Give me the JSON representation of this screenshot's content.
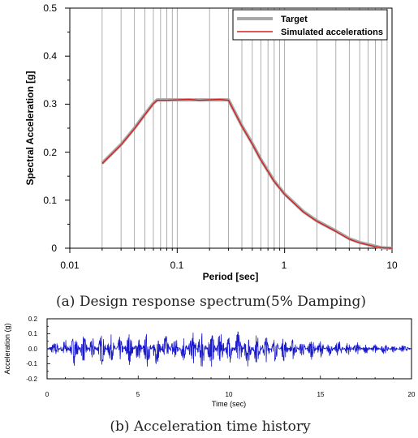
{
  "chart_data": [
    {
      "type": "line",
      "xscale": "log",
      "xlim": [
        0.01,
        10
      ],
      "ylim": [
        0,
        0.5
      ],
      "xlabel": "Period [sec]",
      "ylabel": "Spectral Acceleration [g]",
      "x_ticks": [
        "0.01",
        "0.1",
        "1",
        "10"
      ],
      "y_ticks": [
        "0",
        "0.1",
        "0.2",
        "0.3",
        "0.4",
        "0.5"
      ],
      "grid": "vertical",
      "legend_position": "top-right",
      "caption": "(a) Design response spectrum(5% Damping)",
      "series": [
        {
          "name": "Target",
          "color": "#a8a8a8",
          "x": [
            0.02,
            0.03,
            0.04,
            0.05,
            0.06,
            0.065,
            0.1,
            0.2,
            0.3,
            0.4,
            0.5,
            0.6,
            0.8,
            1.0,
            1.5,
            2.0,
            3.0,
            4.0,
            5.0,
            6.0,
            7.0,
            8.0,
            10.0
          ],
          "y": [
            0.177,
            0.216,
            0.25,
            0.279,
            0.302,
            0.309,
            0.309,
            0.309,
            0.309,
            0.255,
            0.218,
            0.185,
            0.14,
            0.113,
            0.076,
            0.057,
            0.036,
            0.02,
            0.012,
            0.008,
            0.004,
            0.001,
            0.0
          ]
        },
        {
          "name": "Simulated accelerations",
          "color": "#d62020",
          "x": [
            0.02,
            0.03,
            0.04,
            0.05,
            0.06,
            0.065,
            0.08,
            0.1,
            0.13,
            0.16,
            0.2,
            0.25,
            0.3,
            0.4,
            0.5,
            0.6,
            0.8,
            1.0,
            1.5,
            2.0,
            3.0,
            4.0,
            5.0,
            6.0,
            7.0,
            8.0,
            10.0
          ],
          "y": [
            0.176,
            0.215,
            0.249,
            0.278,
            0.301,
            0.308,
            0.308,
            0.309,
            0.31,
            0.308,
            0.309,
            0.31,
            0.308,
            0.254,
            0.217,
            0.184,
            0.139,
            0.112,
            0.075,
            0.056,
            0.035,
            0.019,
            0.011,
            0.007,
            0.003,
            0.001,
            0.0
          ]
        }
      ]
    },
    {
      "type": "line",
      "xlim": [
        0,
        20
      ],
      "ylim": [
        -0.2,
        0.2
      ],
      "xlabel": "Time (sec)",
      "ylabel": "Acceleration (g)",
      "x_ticks": [
        "0",
        "5",
        "10",
        "15",
        "20"
      ],
      "y_ticks": [
        "-0.2",
        "-0.1",
        "0.0",
        "0.1",
        "0.2"
      ],
      "grid": "none",
      "caption": "(b) Acceleration time history",
      "series": [
        {
          "color": "#1a1acc",
          "x": [
            0,
            0.5,
            1,
            1.5,
            2,
            2.5,
            3,
            3.5,
            4,
            4.5,
            5,
            5.5,
            6,
            6.5,
            7,
            7.5,
            8,
            8.5,
            9,
            9.5,
            10,
            10.5,
            11,
            11.5,
            12,
            12.5,
            13,
            13.5,
            14,
            14.5,
            15,
            15.5,
            16,
            16.5,
            17,
            17.5,
            18,
            18.5,
            19,
            19.5,
            20
          ],
          "y": [
            0.0,
            0.04,
            -0.06,
            0.09,
            -0.08,
            0.07,
            -0.09,
            0.08,
            -0.07,
            0.09,
            -0.08,
            0.1,
            -0.1,
            0.09,
            -0.09,
            0.08,
            -0.1,
            0.12,
            -0.11,
            0.1,
            -0.09,
            0.11,
            -0.1,
            0.09,
            -0.08,
            0.07,
            -0.07,
            0.06,
            -0.05,
            0.06,
            -0.05,
            0.04,
            -0.05,
            0.04,
            -0.04,
            0.03,
            -0.03,
            0.03,
            -0.02,
            0.02,
            0.0
          ]
        }
      ]
    }
  ],
  "legend": {
    "target_label": "Target",
    "simulated_label": "Simulated accelerations"
  }
}
